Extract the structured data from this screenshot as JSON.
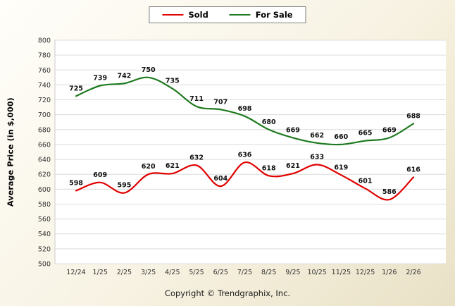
{
  "ylabel_panel": "Average Price (in $,000)",
  "footer": "Copyright © Trendgraphix, Inc.",
  "chart_data": {
    "type": "line",
    "title": "",
    "xlabel": "",
    "ylabel": "Average Price (in $,000)",
    "ylim": [
      500,
      800
    ],
    "ytick_step": 20,
    "grid": true,
    "legend_position": "top-center",
    "categories": [
      "12/24",
      "1/25",
      "2/25",
      "3/25",
      "4/25",
      "5/25",
      "6/25",
      "7/25",
      "8/25",
      "9/25",
      "10/25",
      "11/25",
      "12/25",
      "1/26",
      "2/26"
    ],
    "series": [
      {
        "name": "Sold",
        "color": "#e00000",
        "values": [
          598,
          609,
          595,
          620,
          621,
          632,
          604,
          636,
          618,
          621,
          633,
          619,
          601,
          586,
          616
        ]
      },
      {
        "name": "For Sale",
        "color": "#1f7a1f",
        "values": [
          725,
          739,
          742,
          750,
          735,
          711,
          707,
          698,
          680,
          669,
          662,
          660,
          665,
          669,
          688
        ]
      }
    ]
  }
}
